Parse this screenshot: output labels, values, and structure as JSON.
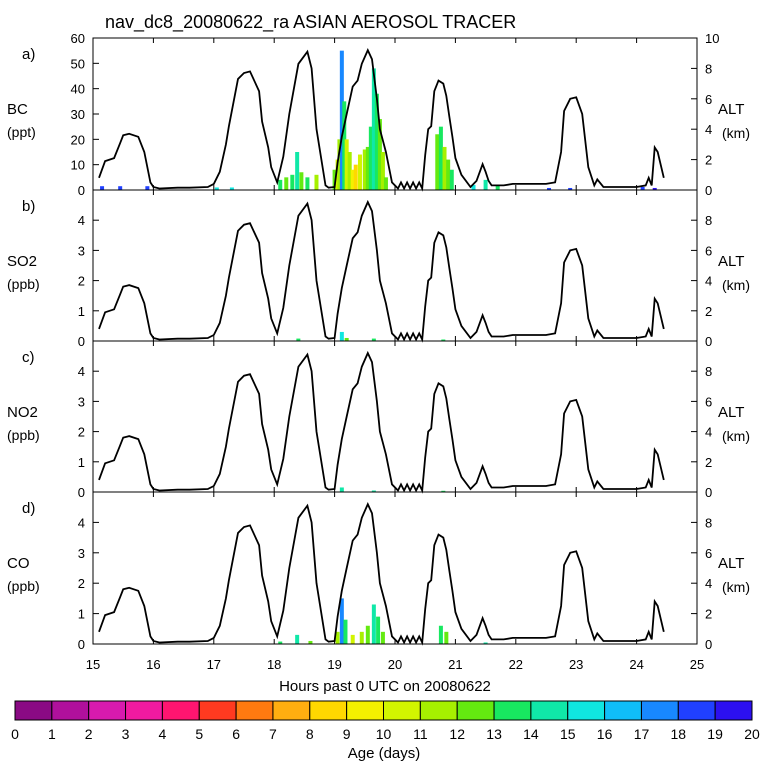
{
  "chart_data": {
    "type": "line",
    "title": "nav_dc8_20080622_ra ASIAN AEROSOL TRACER",
    "xlabel": "Hours past 0 UTC on 20080622",
    "xlim": [
      15,
      25
    ],
    "x_ticks": [
      15,
      16,
      17,
      18,
      19,
      20,
      21,
      22,
      23,
      24,
      25
    ],
    "alt_axis": {
      "label": "ALT",
      "unit": "(km)",
      "ylim": [
        0,
        10
      ],
      "ticks_bc": [
        0,
        2,
        4,
        6,
        8,
        10
      ],
      "ticks_other": [
        0,
        2,
        4,
        6,
        8
      ]
    },
    "altitude_track": {
      "name": "ALT (km)",
      "x": [
        15.1,
        15.2,
        15.35,
        15.45,
        15.5,
        15.6,
        15.75,
        15.8,
        15.85,
        15.95,
        16.0,
        16.1,
        16.4,
        16.6,
        16.9,
        17.0,
        17.1,
        17.2,
        17.25,
        17.4,
        17.5,
        17.6,
        17.75,
        17.8,
        17.9,
        17.95,
        18.05,
        18.15,
        18.25,
        18.4,
        18.55,
        18.62,
        18.7,
        18.85,
        18.9,
        19.0,
        19.05,
        19.12,
        19.2,
        19.3,
        19.38,
        19.45,
        19.55,
        19.62,
        19.7,
        19.75,
        19.85,
        19.95,
        20.05,
        20.1,
        20.15,
        20.2,
        20.25,
        20.3,
        20.35,
        20.4,
        20.45,
        20.5,
        20.55,
        20.6,
        20.65,
        20.72,
        20.8,
        20.85,
        20.9,
        20.95,
        21.0,
        21.1,
        21.25,
        21.35,
        21.45,
        21.5,
        21.55,
        21.6,
        21.8,
        21.95,
        22.15,
        22.35,
        22.5,
        22.65,
        22.75,
        22.8,
        22.9,
        23.0,
        23.1,
        23.2,
        23.3,
        23.35,
        23.45,
        23.6,
        23.75,
        24.0,
        24.15,
        24.2,
        24.25,
        24.3,
        24.35,
        24.45
      ],
      "values": [
        0.8,
        1.9,
        2.1,
        3.1,
        3.6,
        3.7,
        3.5,
        3.0,
        2.5,
        0.5,
        0.2,
        0.1,
        0.15,
        0.15,
        0.2,
        0.4,
        1.2,
        3.0,
        4.2,
        7.3,
        7.7,
        7.8,
        6.5,
        4.5,
        2.8,
        1.5,
        0.5,
        2.2,
        5.0,
        8.3,
        9.1,
        8.0,
        4.0,
        0.3,
        0.15,
        0.2,
        1.8,
        3.5,
        5.0,
        6.8,
        7.2,
        8.3,
        9.2,
        8.6,
        6.0,
        4.0,
        2.5,
        0.5,
        0.1,
        0.5,
        0.1,
        0.5,
        0.1,
        0.5,
        0.1,
        0.5,
        0.1,
        2.3,
        4.0,
        4.2,
        6.5,
        7.2,
        7.0,
        6.2,
        4.8,
        3.5,
        2.1,
        1.0,
        0.2,
        0.6,
        1.7,
        1.2,
        0.6,
        0.3,
        0.3,
        0.4,
        0.4,
        0.4,
        0.4,
        0.5,
        2.5,
        5.2,
        6.0,
        6.1,
        5.0,
        1.5,
        0.3,
        0.7,
        0.2,
        0.2,
        0.2,
        0.2,
        0.3,
        0.8,
        0.3,
        2.8,
        2.5,
        0.8
      ]
    },
    "panels": [
      {
        "label": "a)",
        "species": "BC",
        "unit": "(ppt)",
        "ylim": [
          0,
          60
        ],
        "yticks": [
          0,
          10,
          20,
          30,
          40,
          50,
          60
        ],
        "tracer": [
          {
            "x": 15.15,
            "value": 1.5,
            "age": 18.5
          },
          {
            "x": 15.45,
            "value": 1.5,
            "age": 18.5
          },
          {
            "x": 15.9,
            "value": 1.5,
            "age": 18.5
          },
          {
            "x": 17.05,
            "value": 1.0,
            "age": 15
          },
          {
            "x": 17.3,
            "value": 1.0,
            "age": 15
          },
          {
            "x": 18.1,
            "value": 4,
            "age": 13
          },
          {
            "x": 18.2,
            "value": 5,
            "age": 12
          },
          {
            "x": 18.3,
            "value": 6,
            "age": 13
          },
          {
            "x": 18.38,
            "value": 15,
            "age": 14
          },
          {
            "x": 18.45,
            "value": 7,
            "age": 12
          },
          {
            "x": 18.55,
            "value": 5,
            "age": 13
          },
          {
            "x": 18.7,
            "value": 6,
            "age": 11
          },
          {
            "x": 19.0,
            "value": 8,
            "age": 12
          },
          {
            "x": 19.05,
            "value": 12,
            "age": 10
          },
          {
            "x": 19.08,
            "value": 20,
            "age": 11
          },
          {
            "x": 19.12,
            "value": 55,
            "age": 17
          },
          {
            "x": 19.16,
            "value": 35,
            "age": 13
          },
          {
            "x": 19.2,
            "value": 20,
            "age": 10
          },
          {
            "x": 19.25,
            "value": 15,
            "age": 11
          },
          {
            "x": 19.3,
            "value": 8,
            "age": 9
          },
          {
            "x": 19.35,
            "value": 10,
            "age": 8
          },
          {
            "x": 19.42,
            "value": 14,
            "age": 10
          },
          {
            "x": 19.5,
            "value": 16,
            "age": 11
          },
          {
            "x": 19.55,
            "value": 17,
            "age": 12
          },
          {
            "x": 19.6,
            "value": 25,
            "age": 13
          },
          {
            "x": 19.65,
            "value": 48,
            "age": 14
          },
          {
            "x": 19.7,
            "value": 38,
            "age": 13
          },
          {
            "x": 19.75,
            "value": 28,
            "age": 12
          },
          {
            "x": 19.8,
            "value": 15,
            "age": 11
          },
          {
            "x": 19.85,
            "value": 5,
            "age": 12
          },
          {
            "x": 20.7,
            "value": 22,
            "age": 12
          },
          {
            "x": 20.76,
            "value": 25,
            "age": 13
          },
          {
            "x": 20.82,
            "value": 17,
            "age": 11
          },
          {
            "x": 20.88,
            "value": 12,
            "age": 12
          },
          {
            "x": 20.94,
            "value": 8,
            "age": 13
          },
          {
            "x": 21.3,
            "value": 2,
            "age": 15
          },
          {
            "x": 21.5,
            "value": 4,
            "age": 14
          },
          {
            "x": 21.7,
            "value": 2,
            "age": 13
          },
          {
            "x": 22.55,
            "value": 0.8,
            "age": 18
          },
          {
            "x": 22.9,
            "value": 0.8,
            "age": 18
          },
          {
            "x": 24.1,
            "value": 1.2,
            "age": 18.5
          },
          {
            "x": 24.3,
            "value": 0.8,
            "age": 19
          }
        ]
      },
      {
        "label": "b)",
        "species": "SO2",
        "unit": "(ppb)",
        "ylim": [
          0,
          5
        ],
        "yticks": [
          0,
          1,
          2,
          3,
          4
        ],
        "tracer": [
          {
            "x": 18.4,
            "value": 0.08,
            "age": 13
          },
          {
            "x": 19.12,
            "value": 0.3,
            "age": 15
          },
          {
            "x": 19.2,
            "value": 0.1,
            "age": 12
          },
          {
            "x": 19.65,
            "value": 0.08,
            "age": 13
          },
          {
            "x": 20.8,
            "value": 0.05,
            "age": 13
          }
        ]
      },
      {
        "label": "c)",
        "species": "NO2",
        "unit": "(ppb)",
        "ylim": [
          0,
          5
        ],
        "yticks": [
          0,
          1,
          2,
          3,
          4
        ],
        "tracer": [
          {
            "x": 19.12,
            "value": 0.15,
            "age": 14
          },
          {
            "x": 19.65,
            "value": 0.05,
            "age": 14
          },
          {
            "x": 20.8,
            "value": 0.04,
            "age": 13
          }
        ]
      },
      {
        "label": "d)",
        "species": "CO",
        "unit": "(ppb)",
        "ylim": [
          0,
          5
        ],
        "yticks": [
          0,
          1,
          2,
          3,
          4
        ],
        "tracer": [
          {
            "x": 18.1,
            "value": 0.08,
            "age": 13
          },
          {
            "x": 18.38,
            "value": 0.3,
            "age": 14
          },
          {
            "x": 18.6,
            "value": 0.1,
            "age": 12
          },
          {
            "x": 19.05,
            "value": 0.4,
            "age": 11
          },
          {
            "x": 19.12,
            "value": 1.5,
            "age": 17
          },
          {
            "x": 19.18,
            "value": 0.8,
            "age": 13
          },
          {
            "x": 19.3,
            "value": 0.3,
            "age": 10
          },
          {
            "x": 19.45,
            "value": 0.4,
            "age": 11
          },
          {
            "x": 19.55,
            "value": 0.6,
            "age": 12
          },
          {
            "x": 19.65,
            "value": 1.3,
            "age": 14
          },
          {
            "x": 19.72,
            "value": 0.9,
            "age": 13
          },
          {
            "x": 19.8,
            "value": 0.4,
            "age": 12
          },
          {
            "x": 20.76,
            "value": 0.6,
            "age": 13
          },
          {
            "x": 20.85,
            "value": 0.4,
            "age": 12
          },
          {
            "x": 21.5,
            "value": 0.05,
            "age": 14
          }
        ]
      }
    ],
    "colorbar": {
      "label": "Age (days)",
      "ticks": [
        0,
        1,
        2,
        3,
        4,
        5,
        6,
        7,
        8,
        9,
        10,
        11,
        12,
        13,
        14,
        15,
        16,
        17,
        18,
        19,
        20
      ],
      "colors": [
        "#8a0a84",
        "#b0109c",
        "#d81aae",
        "#f01aa0",
        "#ff1570",
        "#ff3a20",
        "#ff7a10",
        "#ffae10",
        "#ffd800",
        "#f4f000",
        "#d2f500",
        "#a6f000",
        "#64ea10",
        "#18e860",
        "#10e8a8",
        "#10e6e0",
        "#10bef8",
        "#1888ff",
        "#2040ff",
        "#2c10f0"
      ]
    }
  }
}
